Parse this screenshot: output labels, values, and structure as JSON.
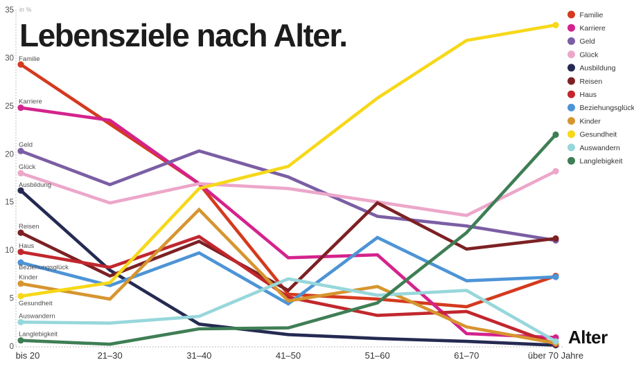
{
  "title": "Lebensziele nach Alter.",
  "alter_axis_label": "Alter",
  "chart_data": {
    "type": "line",
    "title": "Lebensziele nach Alter.",
    "unit_label": "in %",
    "xlabel": "Alter",
    "ylabel": "in %",
    "ylim": [
      0,
      35
    ],
    "y_ticks": [
      35,
      30,
      25,
      20,
      15,
      10,
      5,
      0
    ],
    "grid": "off",
    "legend_position": "top-right",
    "categories": [
      "bis 20",
      "21–30",
      "31–40",
      "41–50",
      "51–60",
      "61–70",
      "über 70 Jahre"
    ],
    "series": [
      {
        "name": "Familie",
        "color": "#d43a1e",
        "values": [
          29.3,
          23.1,
          16.9,
          5.4,
          4.9,
          4.1,
          7.3
        ],
        "label_dy": -5
      },
      {
        "name": "Karriere",
        "color": "#d4238c",
        "values": [
          24.8,
          23.5,
          16.9,
          9.2,
          9.5,
          1.3,
          0.9
        ],
        "label_dy": -6
      },
      {
        "name": "Geld",
        "color": "#7b5ea4",
        "values": [
          20.3,
          16.8,
          20.3,
          17.6,
          13.5,
          12.5,
          11.0
        ],
        "label_dy": -6
      },
      {
        "name": "Glück",
        "color": "#eca7c9",
        "values": [
          18.0,
          14.9,
          16.9,
          16.4,
          15.0,
          13.6,
          18.2
        ],
        "label_dy": -6
      },
      {
        "name": "Ausbildung",
        "color": "#252a52",
        "values": [
          16.2,
          7.9,
          2.3,
          1.2,
          0.8,
          0.5,
          0.1
        ],
        "label_dy": -5
      },
      {
        "name": "Reisen",
        "color": "#7d2124",
        "values": [
          11.8,
          7.3,
          10.9,
          5.8,
          14.9,
          10.1,
          11.2
        ],
        "label_dy": -6
      },
      {
        "name": "Haus",
        "color": "#c1272d",
        "values": [
          9.8,
          8.2,
          11.4,
          5.1,
          3.2,
          3.6,
          0.2
        ],
        "label_dy": -6
      },
      {
        "name": "Beziehungsglück",
        "color": "#4d94d6",
        "values": [
          8.7,
          6.3,
          9.7,
          4.4,
          11.3,
          6.8,
          7.2
        ],
        "label_dy": 10
      },
      {
        "name": "Kinder",
        "color": "#d6952f",
        "values": [
          6.5,
          4.9,
          14.2,
          4.7,
          6.2,
          2.0,
          0.3
        ],
        "label_dy": -6
      },
      {
        "name": "Gesundheit",
        "color": "#f6d818",
        "values": [
          5.2,
          6.6,
          16.4,
          18.7,
          25.8,
          31.8,
          33.4
        ],
        "label_dy": 13
      },
      {
        "name": "Auswandern",
        "color": "#97d7db",
        "values": [
          2.5,
          2.4,
          3.1,
          7.0,
          5.3,
          5.8,
          0.5
        ],
        "label_dy": -6
      },
      {
        "name": "Langlebigkeit",
        "color": "#3f7e55",
        "values": [
          0.6,
          0.2,
          1.8,
          1.9,
          4.5,
          11.8,
          22.0
        ],
        "label_dy": -6
      }
    ]
  },
  "style": {
    "axis_dot_color": "#b5b5b5",
    "tick_label_color": "#4d4d4d",
    "x_label_color": "#333333",
    "series_label_color": "#4d4d4d",
    "legend_label_color": "#333333",
    "unit_label_color": "#a8a8a8"
  }
}
